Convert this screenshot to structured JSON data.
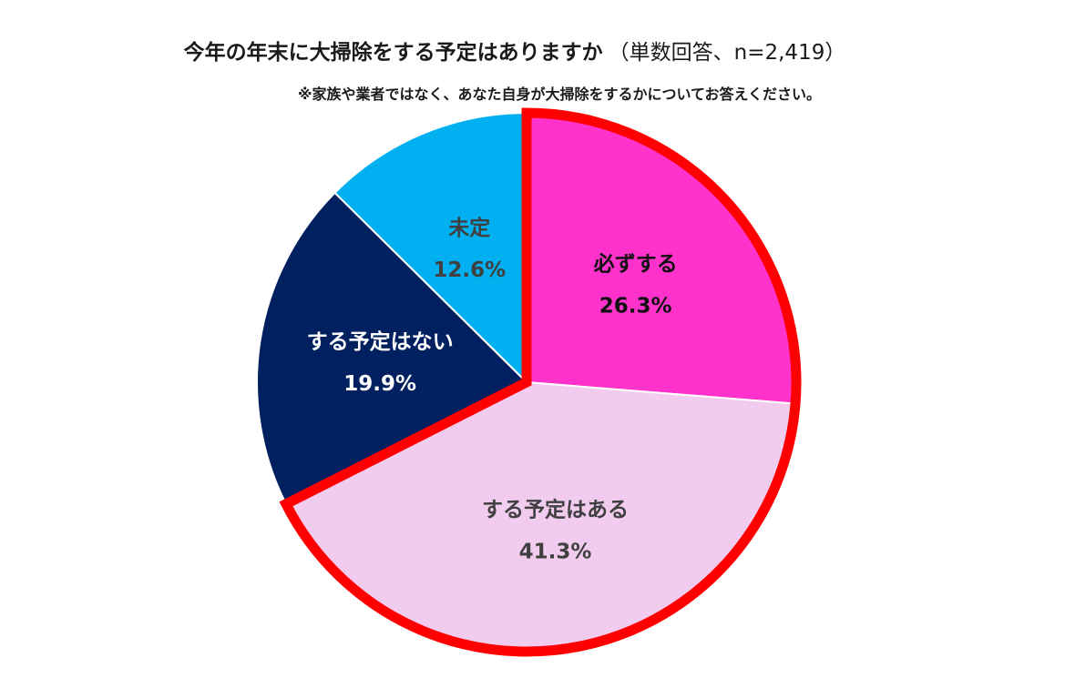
{
  "chart_data": {
    "type": "pie",
    "title": "今年の年末に大掃除をする予定はありますか",
    "subtitle": "（単数回答、n=2,419）",
    "note": "※家族や業者ではなく、あなた自身が大掃除をするかについてお答えください。",
    "categories": [
      "必ずする",
      "する予定はある",
      "する予定はない",
      "未定"
    ],
    "values": [
      26.3,
      41.3,
      19.9,
      12.6
    ],
    "value_labels": [
      "26.3%",
      "41.3%",
      "19.9%",
      "12.6%"
    ],
    "colors": [
      "#FF33CC",
      "#F2CCEE",
      "#002060",
      "#00B0F0"
    ],
    "label_colors": [
      "#111111",
      "#404040",
      "#FFFFFF",
      "#404040"
    ],
    "highlight": {
      "categories": [
        "必ずする",
        "する予定はある"
      ],
      "outline_color": "#FF0000"
    },
    "start_angle_deg": 0,
    "direction": "clockwise"
  }
}
